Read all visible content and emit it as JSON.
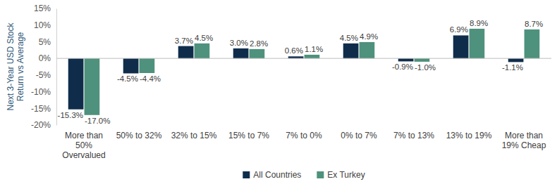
{
  "chart_data": {
    "type": "bar",
    "y_label": "Next 3-Year USD Stock Return vs Average",
    "categories": [
      "More than 50% Overvalued",
      "50% to 32%",
      "32% to 15%",
      "15% to 7%",
      "7% to 0%",
      "0% to 7%",
      "7% to 13%",
      "13% to 19%",
      "More than 19% Cheap"
    ],
    "series": [
      {
        "name": "All Countries",
        "color": "#0f2d4b",
        "values": [
          -15.3,
          -4.5,
          3.7,
          3.0,
          0.6,
          4.5,
          -0.9,
          6.9,
          -1.1
        ],
        "value_labels": [
          "-15.3%",
          "-4.5%",
          "3.7%",
          "3.0%",
          "0.6%",
          "4.5%",
          "-0.9%",
          "6.9%",
          "-1.1%"
        ]
      },
      {
        "name": "Ex Turkey",
        "color": "#4e917c",
        "values": [
          -17.0,
          -4.4,
          4.5,
          2.8,
          1.1,
          4.9,
          -1.0,
          8.9,
          8.7
        ],
        "value_labels": [
          "-17.0%",
          "-4.4%",
          "4.5%",
          "2.8%",
          "1.1%",
          "4.9%",
          "-1.0%",
          "8.9%",
          "8.7%"
        ]
      }
    ],
    "ylim": [
      -20,
      15
    ],
    "yticks": [
      {
        "value": -20,
        "label": "-20%"
      },
      {
        "value": -15,
        "label": "-15%"
      },
      {
        "value": -10,
        "label": "-10%"
      },
      {
        "value": -5,
        "label": "-5%"
      },
      {
        "value": 0,
        "label": "0%"
      },
      {
        "value": 5,
        "label": "5%"
      },
      {
        "value": 10,
        "label": "10%"
      },
      {
        "value": 15,
        "label": "15%"
      }
    ],
    "grid": false,
    "legend": "bottom",
    "data_labels": true
  }
}
